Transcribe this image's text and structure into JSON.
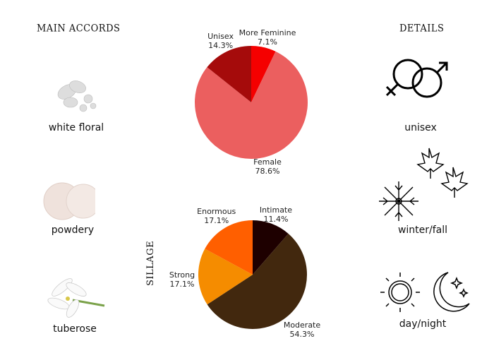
{
  "headings": {
    "accords": "MAIN ACCORDS",
    "details": "DETAILS",
    "sillage": "SILLAGE"
  },
  "accords": [
    {
      "label": "white floral",
      "icon": "white-floral-image"
    },
    {
      "label": "powdery",
      "icon": "powder-image"
    },
    {
      "label": "tuberose",
      "icon": "tuberose-flower-image"
    }
  ],
  "details": [
    {
      "label": "unisex",
      "icon": "gender-symbols-icon"
    },
    {
      "label": "winter/fall",
      "icon": "snowflake-maple-leaf-icon"
    },
    {
      "label": "day/night",
      "icon": "sun-moon-icon"
    }
  ],
  "chart_data": [
    {
      "type": "pie",
      "start": "top",
      "direction": "clockwise",
      "slices": [
        {
          "name": "More Feminine",
          "value": 7.1,
          "label": "7.1%",
          "color": "#f50000"
        },
        {
          "name": "Female",
          "value": 78.6,
          "label": "78.6%",
          "color": "#eb5f5f"
        },
        {
          "name": "Unisex",
          "value": 14.3,
          "label": "14.3%",
          "color": "#a50b0b"
        }
      ]
    },
    {
      "type": "pie",
      "title": "SILLAGE",
      "start": "top",
      "direction": "clockwise",
      "slices": [
        {
          "name": "Intimate",
          "value": 11.4,
          "label": "11.4%",
          "color": "#1e0000"
        },
        {
          "name": "Moderate",
          "value": 54.3,
          "label": "54.3%",
          "color": "#42280e"
        },
        {
          "name": "Strong",
          "value": 17.1,
          "label": "17.1%",
          "color": "#f58c00"
        },
        {
          "name": "Enormous",
          "value": 17.1,
          "label": "17.1%",
          "color": "#ff5f00"
        }
      ]
    }
  ]
}
